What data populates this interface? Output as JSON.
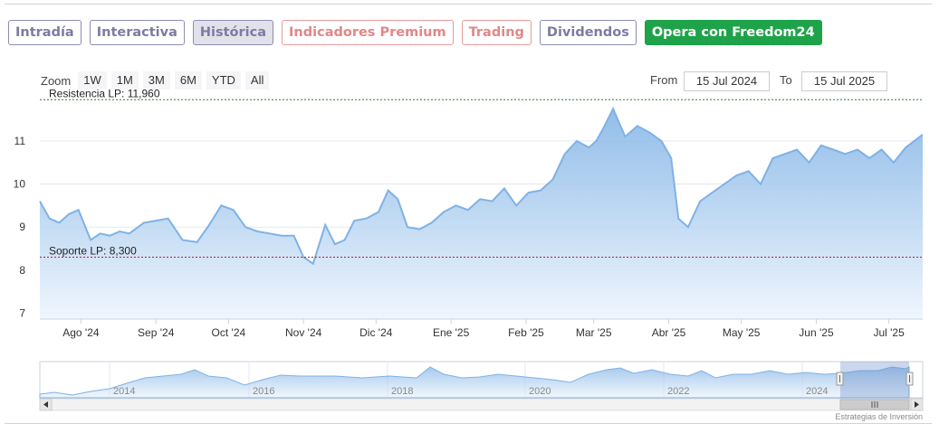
{
  "tabs": [
    {
      "label": "Intradía",
      "state": "normal"
    },
    {
      "label": "Interactiva",
      "state": "normal"
    },
    {
      "label": "Histórica",
      "state": "active"
    },
    {
      "label": "Indicadores Premium",
      "state": "premium"
    },
    {
      "label": "Trading",
      "state": "premium"
    },
    {
      "label": "Dividendos",
      "state": "normal"
    },
    {
      "label": "Opera con Freedom24",
      "state": "green"
    }
  ],
  "zoom": {
    "label": "Zoom",
    "buttons": [
      "1W",
      "1M",
      "3M",
      "6M",
      "YTD",
      "All"
    ]
  },
  "range": {
    "from_label": "From",
    "from_value": "15 Jul 2024",
    "to_label": "To",
    "to_value": "15 Jul 2025"
  },
  "credit": "Estrategias de Inversión",
  "colors": {
    "line": "#7fb2e5",
    "fill_top": "#7fb2e5",
    "fill_bottom": "#eef5fd",
    "resistance": "#2e7d32",
    "support": "#b71c3c",
    "tab_border": "#8e8cb5",
    "premium": "#e28787",
    "green": "#1ea34a"
  },
  "chart_data": {
    "type": "area",
    "yticks": [
      7,
      8,
      9,
      10,
      11
    ],
    "ylim": [
      6.9,
      12.0
    ],
    "xlim": [
      "2024-07-15",
      "2025-07-15"
    ],
    "xticks": [
      {
        "date": "2024-08-01",
        "label": "Ago '24"
      },
      {
        "date": "2024-09-01",
        "label": "Sep '24"
      },
      {
        "date": "2024-10-01",
        "label": "Oct '24"
      },
      {
        "date": "2024-11-01",
        "label": "Nov '24"
      },
      {
        "date": "2024-12-01",
        "label": "Dic '24"
      },
      {
        "date": "2025-01-01",
        "label": "Ene '25"
      },
      {
        "date": "2025-02-01",
        "label": "Feb '25"
      },
      {
        "date": "2025-03-01",
        "label": "Mar '25"
      },
      {
        "date": "2025-04-01",
        "label": "Abr '25"
      },
      {
        "date": "2025-05-01",
        "label": "May '25"
      },
      {
        "date": "2025-06-01",
        "label": "Jun '25"
      },
      {
        "date": "2025-07-01",
        "label": "Jul '25"
      }
    ],
    "lines": [
      {
        "label": "Resistencia LP: 11,960",
        "value": 11.96,
        "color": "#2e7d32"
      },
      {
        "label": "Soporte LP: 8,300",
        "value": 8.3,
        "color": "#b71c3c"
      }
    ],
    "x": [
      "2024-07-15",
      "2024-07-19",
      "2024-07-23",
      "2024-07-27",
      "2024-07-31",
      "2024-08-05",
      "2024-08-09",
      "2024-08-13",
      "2024-08-17",
      "2024-08-21",
      "2024-08-27",
      "2024-09-01",
      "2024-09-06",
      "2024-09-12",
      "2024-09-18",
      "2024-09-23",
      "2024-09-28",
      "2024-10-03",
      "2024-10-08",
      "2024-10-13",
      "2024-10-18",
      "2024-10-23",
      "2024-10-28",
      "2024-11-01",
      "2024-11-05",
      "2024-11-10",
      "2024-11-14",
      "2024-11-18",
      "2024-11-22",
      "2024-11-27",
      "2024-12-02",
      "2024-12-06",
      "2024-12-10",
      "2024-12-14",
      "2024-12-19",
      "2024-12-24",
      "2024-12-29",
      "2025-01-03",
      "2025-01-08",
      "2025-01-13",
      "2025-01-18",
      "2025-01-23",
      "2025-01-28",
      "2025-02-02",
      "2025-02-07",
      "2025-02-12",
      "2025-02-17",
      "2025-02-22",
      "2025-02-27",
      "2025-03-02",
      "2025-03-05",
      "2025-03-09",
      "2025-03-14",
      "2025-03-19",
      "2025-03-24",
      "2025-03-29",
      "2025-04-02",
      "2025-04-05",
      "2025-04-09",
      "2025-04-14",
      "2025-04-19",
      "2025-04-24",
      "2025-04-29",
      "2025-05-04",
      "2025-05-09",
      "2025-05-14",
      "2025-05-19",
      "2025-05-24",
      "2025-05-29",
      "2025-06-03",
      "2025-06-08",
      "2025-06-13",
      "2025-06-18",
      "2025-06-23",
      "2025-06-28",
      "2025-07-03",
      "2025-07-08",
      "2025-07-15"
    ],
    "y": [
      9.6,
      9.2,
      9.1,
      9.3,
      9.4,
      8.7,
      8.85,
      8.8,
      8.9,
      8.85,
      9.1,
      9.15,
      9.2,
      8.7,
      8.65,
      9.05,
      9.5,
      9.4,
      9.0,
      8.9,
      8.85,
      8.8,
      8.8,
      8.3,
      8.15,
      9.05,
      8.6,
      8.7,
      9.15,
      9.2,
      9.35,
      9.85,
      9.65,
      9.0,
      8.95,
      9.1,
      9.35,
      9.5,
      9.4,
      9.65,
      9.6,
      9.9,
      9.5,
      9.8,
      9.85,
      10.1,
      10.7,
      11.0,
      10.85,
      11.0,
      11.3,
      11.75,
      11.1,
      11.35,
      11.2,
      11.0,
      10.6,
      9.2,
      9.0,
      9.6,
      9.8,
      10.0,
      10.2,
      10.3,
      10.0,
      10.6,
      10.7,
      10.8,
      10.5,
      10.9,
      10.8,
      10.7,
      10.8,
      10.6,
      10.8,
      10.5,
      10.85,
      11.15
    ]
  }
}
